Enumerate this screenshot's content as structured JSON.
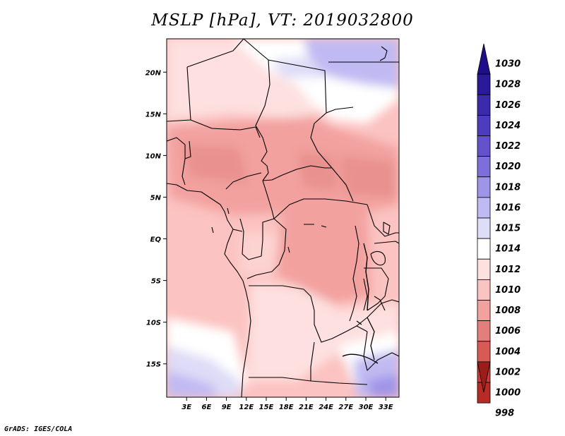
{
  "title": "MSLP [hPa], VT: 2019032800",
  "footer": "GrADS: IGES/COLA",
  "map": {
    "lon_range": [
      0,
      35
    ],
    "lat_range": [
      -19,
      24
    ],
    "lat_ticks": [
      {
        "value": 20,
        "label": "20N"
      },
      {
        "value": 15,
        "label": "15N"
      },
      {
        "value": 10,
        "label": "10N"
      },
      {
        "value": 5,
        "label": "5N"
      },
      {
        "value": 0,
        "label": "EQ"
      },
      {
        "value": -5,
        "label": "5S"
      },
      {
        "value": -10,
        "label": "10S"
      },
      {
        "value": -15,
        "label": "15S"
      }
    ],
    "lon_ticks": [
      {
        "value": 3,
        "label": "3E"
      },
      {
        "value": 6,
        "label": "6E"
      },
      {
        "value": 9,
        "label": "9E"
      },
      {
        "value": 12,
        "label": "12E"
      },
      {
        "value": 15,
        "label": "15E"
      },
      {
        "value": 18,
        "label": "18E"
      },
      {
        "value": 21,
        "label": "21E"
      },
      {
        "value": 24,
        "label": "24E"
      },
      {
        "value": 27,
        "label": "27E"
      },
      {
        "value": 30,
        "label": "30E"
      },
      {
        "value": 33,
        "label": "33E"
      }
    ]
  },
  "colorbar": {
    "levels": [
      {
        "label": "1030",
        "color": "#1e0e8c"
      },
      {
        "label": "1028",
        "color": "#2a1a9a"
      },
      {
        "label": "1026",
        "color": "#3b2aab"
      },
      {
        "label": "1024",
        "color": "#4d3cbd"
      },
      {
        "label": "1022",
        "color": "#6452cc"
      },
      {
        "label": "1020",
        "color": "#7d6ed9"
      },
      {
        "label": "1018",
        "color": "#9e94e8"
      },
      {
        "label": "1016",
        "color": "#c0baf2"
      },
      {
        "label": "1015",
        "color": "#dedcf7"
      },
      {
        "label": "1014",
        "color": "#ffffff"
      },
      {
        "label": "1012",
        "color": "#fde0df"
      },
      {
        "label": "1010",
        "color": "#fbc3c1"
      },
      {
        "label": "1008",
        "color": "#f2a19f"
      },
      {
        "label": "1006",
        "color": "#e27e7b"
      },
      {
        "label": "1004",
        "color": "#d75a55"
      },
      {
        "label": "1002",
        "color": "#cc3c38"
      },
      {
        "label": "1000",
        "color": "#b72a26"
      },
      {
        "label": "998",
        "color": "#9c1c19"
      }
    ]
  }
}
